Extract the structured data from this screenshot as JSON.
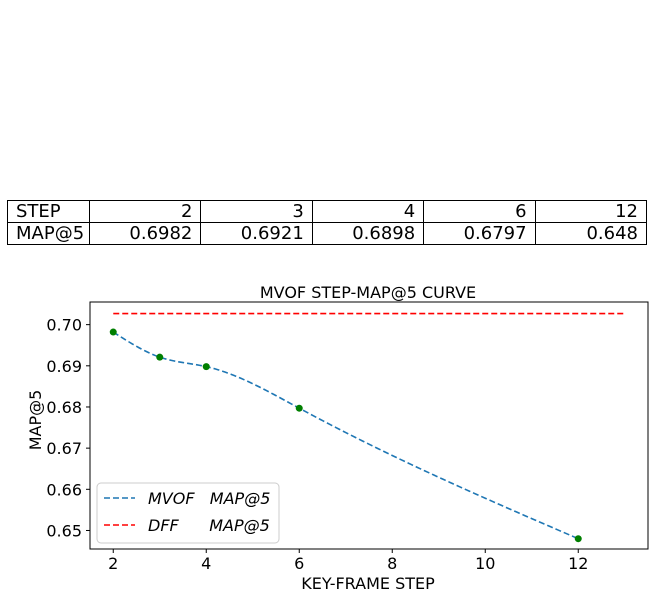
{
  "table": {
    "rows": [
      {
        "label": "STEP",
        "values": [
          "2",
          "3",
          "4",
          "6",
          "12"
        ]
      },
      {
        "label": "MAP@5",
        "values": [
          "0.6982",
          "0.6921",
          "0.6898",
          "0.6797",
          "0.648"
        ]
      }
    ]
  },
  "chart_data": {
    "type": "line",
    "title": "MVOF STEP-MAP@5 CURVE",
    "xlabel": "KEY-FRAME STEP",
    "ylabel": "MAP@5",
    "xlim": [
      1.5,
      13.5
    ],
    "ylim": [
      0.6455,
      0.7055
    ],
    "xticks": [
      2,
      4,
      6,
      8,
      10,
      12
    ],
    "yticks": [
      0.65,
      0.66,
      0.67,
      0.68,
      0.69,
      0.7
    ],
    "xtick_labels": [
      "2",
      "4",
      "6",
      "8",
      "10",
      "12"
    ],
    "ytick_labels": [
      "0.65",
      "0.66",
      "0.67",
      "0.68",
      "0.69",
      "0.70"
    ],
    "grid": false,
    "legend_position": "lower-left",
    "series": [
      {
        "name": "MVOF   MAP@5",
        "color": "#1f77b4",
        "style": "dashed-smooth",
        "x": [
          2,
          3,
          4,
          6,
          12
        ],
        "y": [
          0.6982,
          0.6921,
          0.6898,
          0.6797,
          0.648
        ],
        "marker_color": "#007f00"
      },
      {
        "name": "DFF      MAP@5",
        "color": "#ff0000",
        "style": "dashed",
        "x": [
          2,
          13
        ],
        "y": [
          0.7027,
          0.7027
        ]
      }
    ]
  }
}
